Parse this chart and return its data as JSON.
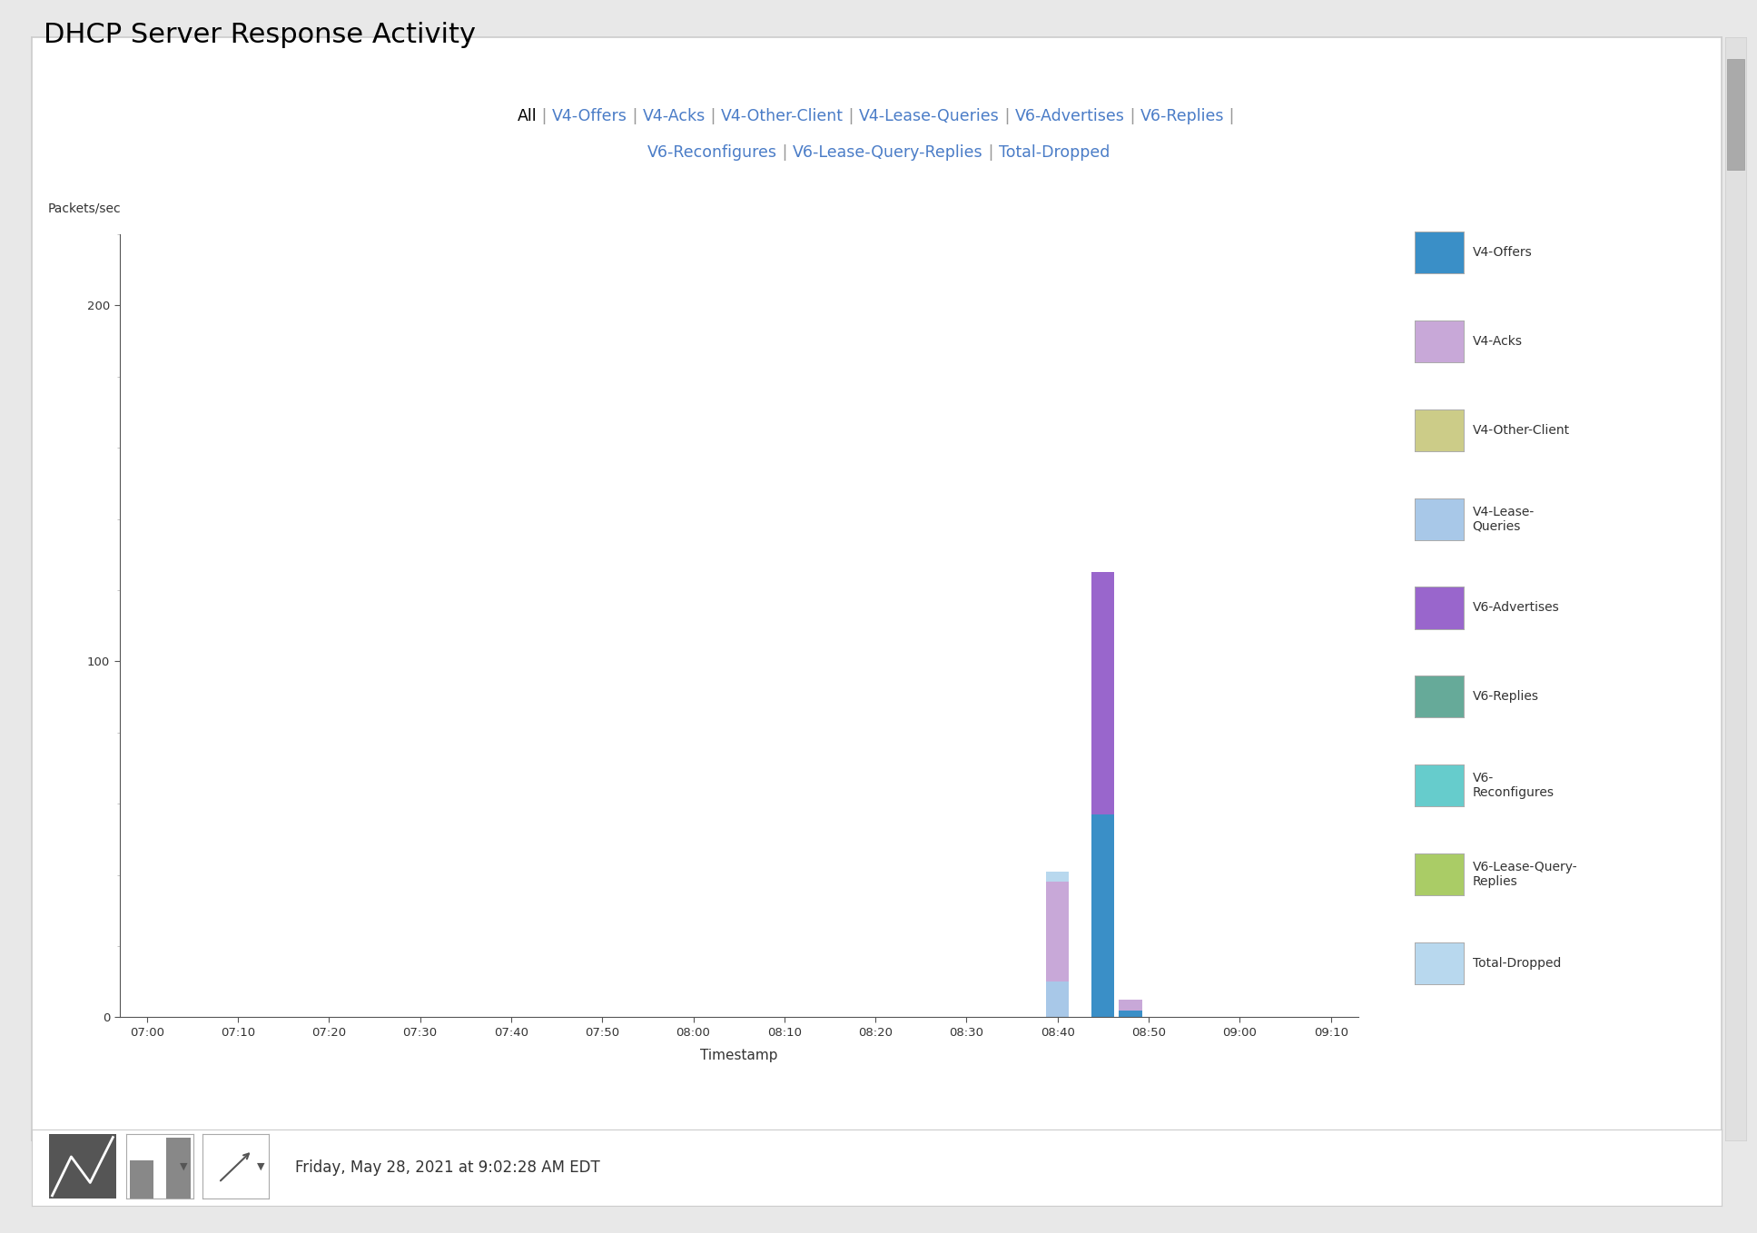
{
  "title": "DHCP Server Response Activity",
  "subtitle_row1": [
    [
      "All",
      "black"
    ],
    [
      " | ",
      "#999999"
    ],
    [
      "V4-Offers",
      "#4a7cc7"
    ],
    [
      " | ",
      "#999999"
    ],
    [
      "V4-Acks",
      "#4a7cc7"
    ],
    [
      " | ",
      "#999999"
    ],
    [
      "V4-Other-Client",
      "#4a7cc7"
    ],
    [
      " | ",
      "#999999"
    ],
    [
      "V4-Lease-Queries",
      "#4a7cc7"
    ],
    [
      " | ",
      "#999999"
    ],
    [
      "V6-Advertises",
      "#4a7cc7"
    ],
    [
      " | ",
      "#999999"
    ],
    [
      "V6-Replies",
      "#4a7cc7"
    ],
    [
      " | ",
      "#999999"
    ]
  ],
  "subtitle_row2": [
    [
      "V6-Reconfigures",
      "#4a7cc7"
    ],
    [
      " | ",
      "#999999"
    ],
    [
      "V6-Lease-Query-Replies",
      "#4a7cc7"
    ],
    [
      " | ",
      "#999999"
    ],
    [
      "Total-Dropped",
      "#4a7cc7"
    ]
  ],
  "ylabel": "Packets/sec",
  "xlabel": "Timestamp",
  "yticks": [
    0,
    100,
    200
  ],
  "ylim": [
    0,
    220
  ],
  "xlim": [
    -3,
    133
  ],
  "xtick_vals": [
    0,
    10,
    20,
    30,
    40,
    50,
    60,
    70,
    80,
    90,
    100,
    110,
    120,
    130
  ],
  "xtick_labels": [
    "07:00",
    "07:10",
    "07:20",
    "07:30",
    "07:40",
    "07:50",
    "08:00",
    "08:10",
    "08:20",
    "08:30",
    "08:40",
    "08:50",
    "09:00",
    "09:10"
  ],
  "bar_width": 2.5,
  "stacked_data": {
    "100": [
      [
        "V4-Lease-Queries",
        "#a8c8e8",
        10
      ],
      [
        "V4-Acks",
        "#c8a8d8",
        28
      ],
      [
        "Total-Dropped",
        "#b8d8ee",
        3
      ]
    ],
    "105": [
      [
        "V4-Offers",
        "#3a8fc7",
        57
      ],
      [
        "V6-Advertises",
        "#9966cc",
        68
      ]
    ],
    "108": [
      [
        "V4-Offers",
        "#3a8fc7",
        2
      ],
      [
        "V4-Acks",
        "#c8a8d8",
        3
      ]
    ]
  },
  "legend_items": [
    [
      "V4-Offers",
      "#3a8fc7"
    ],
    [
      "V4-Acks",
      "#c8a8d8"
    ],
    [
      "V4-Other-Client",
      "#cccc88"
    ],
    [
      "V4-Lease-\nQueries",
      "#a8c8e8"
    ],
    [
      "V6-Advertises",
      "#9966cc"
    ],
    [
      "V6-Replies",
      "#66aa99"
    ],
    [
      "V6-\nReconfigures",
      "#66cccc"
    ],
    [
      "V6-Lease-Query-\nReplies",
      "#aacc66"
    ],
    [
      "Total-Dropped",
      "#b8d8ee"
    ]
  ],
  "footer_text": "Friday, May 28, 2021 at 9:02:28 AM EDT",
  "outer_bg": "#e8e8e8",
  "panel_bg": "#ffffff",
  "border_color": "#cccccc",
  "axis_color": "#555555",
  "tick_color": "#333333"
}
